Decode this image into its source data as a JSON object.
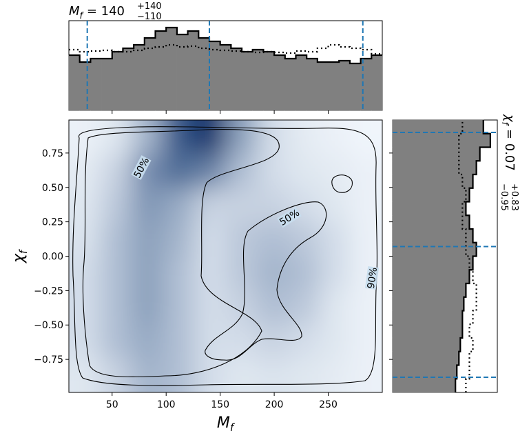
{
  "chart_data": [
    {
      "type": "heatmap",
      "xlabel": {
        "symbol": "M",
        "subscript": "f"
      },
      "ylabel": {
        "symbol": "χ",
        "subscript": "f"
      },
      "xlim": [
        10,
        300
      ],
      "ylim": [
        -0.99,
        0.99
      ],
      "xticks": [
        50,
        100,
        150,
        200,
        250
      ],
      "yticks": [
        {
          "value": -0.75,
          "label": "−0.75"
        },
        {
          "value": -0.5,
          "label": "−0.50"
        },
        {
          "value": -0.25,
          "label": "−0.25"
        },
        {
          "value": 0,
          "label": "0.00"
        },
        {
          "value": 0.25,
          "label": "0.25"
        },
        {
          "value": 0.5,
          "label": "0.50"
        },
        {
          "value": 0.75,
          "label": "0.75"
        }
      ],
      "x_bins": [
        10,
        39,
        68,
        97,
        126,
        155,
        184,
        213,
        242,
        271,
        300
      ],
      "y_bins": [
        -0.99,
        -0.7425,
        -0.495,
        -0.2475,
        0,
        0.2475,
        0.495,
        0.7425,
        0.99
      ],
      "z": [
        [
          0.1,
          0.2,
          0.35,
          0.3,
          0.15,
          0.1,
          0.12,
          0.1,
          0.08,
          0.05
        ],
        [
          0.15,
          0.3,
          0.4,
          0.3,
          0.15,
          0.15,
          0.2,
          0.15,
          0.1,
          0.05
        ],
        [
          0.15,
          0.3,
          0.45,
          0.3,
          0.15,
          0.2,
          0.3,
          0.25,
          0.1,
          0.05
        ],
        [
          0.15,
          0.3,
          0.45,
          0.3,
          0.15,
          0.25,
          0.35,
          0.3,
          0.15,
          0.05
        ],
        [
          0.12,
          0.3,
          0.45,
          0.35,
          0.15,
          0.25,
          0.3,
          0.25,
          0.15,
          0.05
        ],
        [
          0.1,
          0.25,
          0.5,
          0.4,
          0.2,
          0.2,
          0.2,
          0.15,
          0.1,
          0.05
        ],
        [
          0.08,
          0.2,
          0.55,
          0.7,
          0.6,
          0.3,
          0.15,
          0.1,
          0.08,
          0.05
        ],
        [
          0.05,
          0.1,
          0.35,
          0.8,
          1.0,
          0.45,
          0.15,
          0.08,
          0.05,
          0.03
        ]
      ],
      "colormap": [
        "#f7fbff",
        "#08306b"
      ],
      "contour_labels": [
        "50%",
        "50%",
        "90%"
      ]
    },
    {
      "type": "histogram",
      "orientation": "vertical",
      "title": {
        "symbol": "M",
        "subscript": "f",
        "rhs": " = 140",
        "upper": "+140",
        "lower": "−110"
      },
      "xlim": [
        10,
        300
      ],
      "ylim": [
        0,
        1.3
      ],
      "xticks": [
        50,
        100,
        150,
        200,
        250
      ],
      "bins": [
        10,
        20,
        30,
        40,
        50,
        60,
        70,
        80,
        90,
        100,
        110,
        120,
        130,
        140,
        150,
        160,
        170,
        180,
        190,
        200,
        210,
        220,
        230,
        240,
        250,
        260,
        270,
        280,
        290,
        300
      ],
      "series": [
        {
          "style": "solid",
          "fill": "#808080",
          "color": "#000000",
          "values": [
            0.8,
            0.7,
            0.75,
            0.75,
            0.85,
            0.9,
            0.95,
            1.05,
            1.15,
            1.2,
            1.1,
            1.15,
            1.05,
            1.0,
            0.95,
            0.9,
            0.85,
            0.88,
            0.85,
            0.8,
            0.75,
            0.8,
            0.75,
            0.7,
            0.7,
            0.72,
            0.68,
            0.75,
            0.8
          ]
        },
        {
          "style": "dotted",
          "color": "#000000",
          "values": [
            0.88,
            0.85,
            0.86,
            0.87,
            0.85,
            0.85,
            0.87,
            0.9,
            0.92,
            0.95,
            0.92,
            0.93,
            0.9,
            0.88,
            0.87,
            0.86,
            0.85,
            0.84,
            0.85,
            0.84,
            0.83,
            0.86,
            0.85,
            0.9,
            0.95,
            0.92,
            0.9,
            0.88,
            0.82
          ]
        }
      ],
      "markers": [
        27,
        140,
        282
      ],
      "marker_color": "#1f77b4"
    },
    {
      "type": "histogram",
      "orientation": "horizontal",
      "title": {
        "symbol": "χ",
        "subscript": "f",
        "rhs": " = 0.07",
        "upper": "+0.83",
        "lower": "−0.95"
      },
      "xlim": [
        0,
        1.5
      ],
      "ylim": [
        -0.99,
        0.99
      ],
      "yticks": [
        -0.75,
        -0.5,
        -0.25,
        0,
        0.25,
        0.5,
        0.75
      ],
      "bins": [
        -0.99,
        -0.891,
        -0.792,
        -0.693,
        -0.594,
        -0.495,
        -0.396,
        -0.297,
        -0.198,
        -0.099,
        0,
        0.099,
        0.198,
        0.297,
        0.396,
        0.495,
        0.594,
        0.693,
        0.792,
        0.891,
        0.99
      ],
      "series": [
        {
          "style": "solid",
          "fill": "#808080",
          "color": "#000000",
          "values": [
            0.9,
            0.92,
            0.95,
            0.97,
            1.0,
            1.0,
            1.02,
            1.05,
            1.1,
            1.15,
            1.2,
            1.15,
            1.1,
            1.05,
            1.1,
            1.15,
            1.2,
            1.25,
            1.4,
            1.3
          ]
        },
        {
          "style": "dotted",
          "color": "#000000",
          "values": [
            1.05,
            1.1,
            1.1,
            1.15,
            1.1,
            1.15,
            1.2,
            1.2,
            1.15,
            1.1,
            1.05,
            1.05,
            1.0,
            1.0,
            1.05,
            1.0,
            0.95,
            0.95,
            0.95,
            1.0
          ]
        }
      ],
      "markers": [
        0.9,
        0.07,
        -0.88
      ],
      "marker_color": "#1f77b4"
    }
  ]
}
